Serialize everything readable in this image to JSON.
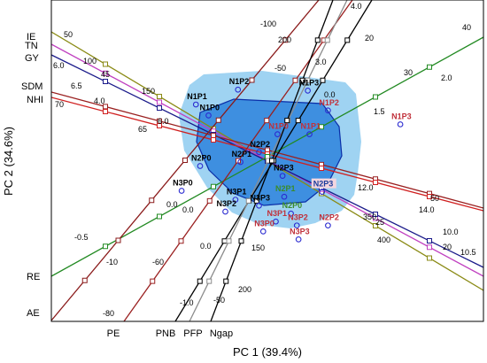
{
  "chart_data": {
    "type": "scatter",
    "subtype": "biplot",
    "xlabel": "PC 1 (39.4%)",
    "ylabel": "PC 2 (34.6%)",
    "xlim": [
      -2.6,
      2.4
    ],
    "ylim": [
      -2.1,
      1.8
    ],
    "grid": false,
    "colors": {
      "outer_hull": "#9fd3f2",
      "inner_hull": "#3e8fe0",
      "inner_hull_edge": "#0a2ea8",
      "point": "#2b2bd0",
      "label_dark": "#000000",
      "label_red": "#c0303a",
      "label_green": "#3a8c2a",
      "label_blue": "#1a3c9c",
      "label_pink_bg": "#f4d6df"
    },
    "observations": [
      {
        "name": "N1P1",
        "x": -0.85,
        "y": 0.58,
        "color": "dark"
      },
      {
        "name": "N1P0",
        "x": -0.7,
        "y": 0.47,
        "color": "dark"
      },
      {
        "name": "N1P2",
        "x": -0.35,
        "y": 0.73,
        "color": "dark"
      },
      {
        "name": "N1P3",
        "x": 0.48,
        "y": 0.72,
        "color": "dark"
      },
      {
        "name": "N1P2",
        "x": 0.72,
        "y": 0.52,
        "color": "red"
      },
      {
        "name": "N1P3",
        "x": 1.58,
        "y": 0.38,
        "color": "red"
      },
      {
        "name": "N1P0",
        "x": 0.12,
        "y": 0.28,
        "color": "red"
      },
      {
        "name": "N1P1",
        "x": 0.5,
        "y": 0.28,
        "color": "red"
      },
      {
        "name": "N2P2",
        "x": -0.1,
        "y": 0.1,
        "color": "dark"
      },
      {
        "name": "N2P1",
        "x": -0.32,
        "y": 0.0,
        "color": "dark"
      },
      {
        "name": "N2P0",
        "x": -0.8,
        "y": -0.04,
        "color": "dark"
      },
      {
        "name": "N2P3",
        "x": 0.18,
        "y": -0.14,
        "color": "dark"
      },
      {
        "name": "N3P0",
        "x": -1.02,
        "y": -0.29,
        "color": "dark"
      },
      {
        "name": "N3P1",
        "x": -0.38,
        "y": -0.38,
        "color": "dark"
      },
      {
        "name": "N3P2",
        "x": -0.5,
        "y": -0.5,
        "color": "dark"
      },
      {
        "name": "N3P3",
        "x": -0.1,
        "y": -0.44,
        "color": "dark"
      },
      {
        "name": "N2P1",
        "x": 0.2,
        "y": -0.35,
        "color": "green"
      },
      {
        "name": "N2P3",
        "x": 0.65,
        "y": -0.3,
        "color": "blue_pink"
      },
      {
        "name": "N2P0",
        "x": 0.28,
        "y": -0.52,
        "color": "green"
      },
      {
        "name": "N3P2",
        "x": 0.35,
        "y": -0.64,
        "color": "red"
      },
      {
        "name": "N3P1",
        "x": 0.1,
        "y": -0.6,
        "color": "red"
      },
      {
        "name": "N2P2",
        "x": 0.72,
        "y": -0.64,
        "color": "red"
      },
      {
        "name": "N3P0",
        "x": -0.05,
        "y": -0.7,
        "color": "red"
      },
      {
        "name": "N3P3",
        "x": 0.37,
        "y": -0.78,
        "color": "red"
      }
    ],
    "variables": [
      {
        "name": "IE",
        "color": "#8a8a14",
        "label_side": "left"
      },
      {
        "name": "TN",
        "color": "#c040c0",
        "label_side": "left"
      },
      {
        "name": "GY",
        "color": "#1a1a8a",
        "label_side": "left"
      },
      {
        "name": "SDM",
        "color": "#9a2020",
        "label_side": "left"
      },
      {
        "name": "NHI",
        "color": "#d02020",
        "label_side": "left"
      },
      {
        "name": "RE",
        "color": "#228a22",
        "label_side": "left"
      },
      {
        "name": "AE",
        "color": "#8a1a1a",
        "label_side": "left"
      },
      {
        "name": "PE",
        "color": "#9a2020",
        "label_side": "bottom"
      },
      {
        "name": "PNB",
        "color": "#000000",
        "label_side": "bottom"
      },
      {
        "name": "PFP",
        "color": "#8c8c8c",
        "label_side": "bottom"
      },
      {
        "name": "Ngap",
        "color": "#000000",
        "label_side": "bottom"
      }
    ],
    "tick_labels": [
      {
        "text": "50",
        "color": "dark"
      },
      {
        "text": "100",
        "color": "dark"
      },
      {
        "text": "150",
        "color": "dark"
      },
      {
        "text": "45",
        "color": "dark"
      },
      {
        "text": "6.0",
        "color": "dark"
      },
      {
        "text": "6.5",
        "color": "dark"
      },
      {
        "text": "70",
        "color": "dark"
      },
      {
        "text": "4.0",
        "color": "dark"
      },
      {
        "text": "65",
        "color": "dark"
      },
      {
        "text": "6.0",
        "color": "dark"
      },
      {
        "text": "-100",
        "color": "dark"
      },
      {
        "text": "200",
        "color": "dark"
      },
      {
        "text": "4.0",
        "color": "dark"
      },
      {
        "text": "20",
        "color": "dark"
      },
      {
        "text": "40",
        "color": "dark"
      },
      {
        "text": "-50",
        "color": "dark"
      },
      {
        "text": "3.0",
        "color": "dark"
      },
      {
        "text": "30",
        "color": "dark"
      },
      {
        "text": "2.0",
        "color": "dark"
      },
      {
        "text": "0.0",
        "color": "dark"
      },
      {
        "text": "1.5",
        "color": "dark"
      },
      {
        "text": "12.0",
        "color": "dark"
      },
      {
        "text": "50",
        "color": "dark"
      },
      {
        "text": "14.0",
        "color": "dark"
      },
      {
        "text": "350",
        "color": "dark"
      },
      {
        "text": "25",
        "color": "dark"
      },
      {
        "text": "10.0",
        "color": "dark"
      },
      {
        "text": "400",
        "color": "dark"
      },
      {
        "text": "20",
        "color": "dark"
      },
      {
        "text": "10.5",
        "color": "dark"
      },
      {
        "text": "0.0",
        "color": "dark"
      },
      {
        "text": "0.0",
        "color": "dark"
      },
      {
        "text": "-0.5",
        "color": "dark"
      },
      {
        "text": "-10",
        "color": "dark"
      },
      {
        "text": "-60",
        "color": "dark"
      },
      {
        "text": "0.0",
        "color": "dark"
      },
      {
        "text": "150",
        "color": "dark"
      },
      {
        "text": "-1.0",
        "color": "dark"
      },
      {
        "text": "-50",
        "color": "dark"
      },
      {
        "text": "200",
        "color": "dark"
      },
      {
        "text": "-80",
        "color": "dark"
      }
    ]
  }
}
